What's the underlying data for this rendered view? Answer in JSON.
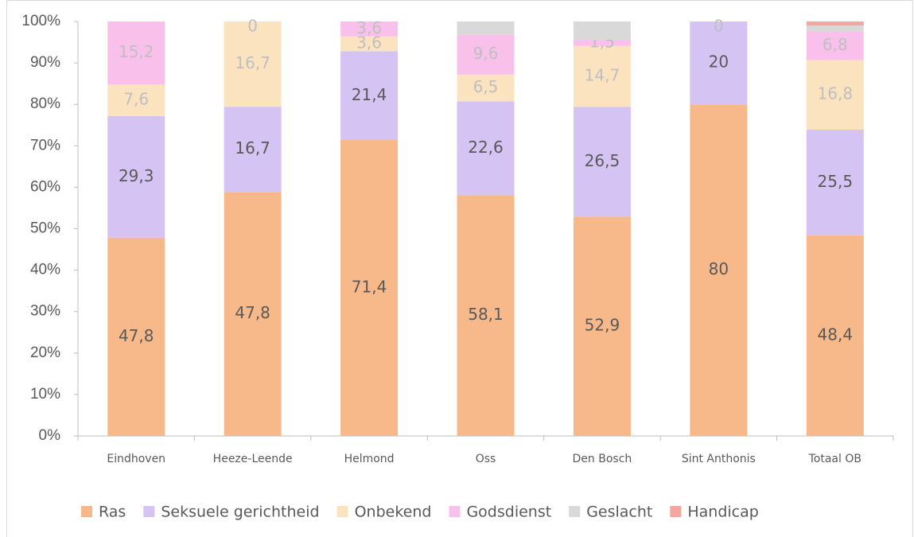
{
  "chart_data": {
    "type": "bar",
    "stacking": "percent",
    "categories": [
      "Eindhoven",
      "Heeze-Leende",
      "Helmond",
      "Oss",
      "Den Bosch",
      "Sint Anthonis",
      "Totaal OB"
    ],
    "series": [
      {
        "name": "Ras",
        "color": "#f8b98a",
        "label_color": "#595959",
        "values": [
          47.8,
          47.8,
          71.4,
          58.1,
          52.9,
          80,
          48.4
        ],
        "value_labels": [
          "47,8",
          "47,8",
          "71,4",
          "58,1",
          "52,9",
          "80",
          "48,4"
        ]
      },
      {
        "name": "Seksuele gerichtheid",
        "color": "#d5c3f3",
        "label_color": "#595959",
        "values": [
          29.3,
          16.7,
          21.4,
          22.6,
          26.5,
          20,
          25.5
        ],
        "value_labels": [
          "29,3",
          "16,7",
          "21,4",
          "22,6",
          "26,5",
          "20",
          "25,5"
        ]
      },
      {
        "name": "Onbekend",
        "color": "#fbe3c0",
        "label_color": "#bfbfbf",
        "values": [
          7.6,
          16.7,
          3.6,
          6.5,
          14.7,
          0,
          16.8
        ],
        "value_labels": [
          "7,6",
          "16,7",
          "3,6",
          "6,5",
          "14,7",
          "0",
          "16,8"
        ]
      },
      {
        "name": "Godsdienst",
        "color": "#f9c0ec",
        "label_color": "#bfbfbf",
        "values": [
          15.2,
          0,
          3.6,
          9.6,
          1.5,
          0,
          6.8
        ],
        "value_labels": [
          "15,2",
          "0",
          "3,6",
          "9,6",
          "1,5",
          null,
          "6,8"
        ]
      },
      {
        "name": "Geslacht",
        "color": "#d9d9d9",
        "label_color": "#bfbfbf",
        "values": [
          0,
          0,
          0,
          3.2,
          4.4,
          0,
          1.5
        ],
        "value_labels": [
          null,
          null,
          null,
          null,
          null,
          null,
          null
        ]
      },
      {
        "name": "Handicap",
        "color": "#f4a6a0",
        "label_color": "#bfbfbf",
        "values": [
          0,
          0,
          0,
          0,
          0,
          0,
          1.0
        ],
        "value_labels": [
          null,
          null,
          null,
          null,
          null,
          null,
          null
        ]
      }
    ],
    "ylim": [
      0,
      100
    ],
    "yticks": [
      {
        "value": 0,
        "label": "0%"
      },
      {
        "value": 10,
        "label": "10%"
      },
      {
        "value": 20,
        "label": "20%"
      },
      {
        "value": 30,
        "label": "30%"
      },
      {
        "value": 40,
        "label": "40%"
      },
      {
        "value": 50,
        "label": "50%"
      },
      {
        "value": 60,
        "label": "60%"
      },
      {
        "value": 70,
        "label": "70%"
      },
      {
        "value": 80,
        "label": "80%"
      },
      {
        "value": 90,
        "label": "90%"
      },
      {
        "value": 100,
        "label": "100%"
      }
    ],
    "legend": "bottom"
  }
}
